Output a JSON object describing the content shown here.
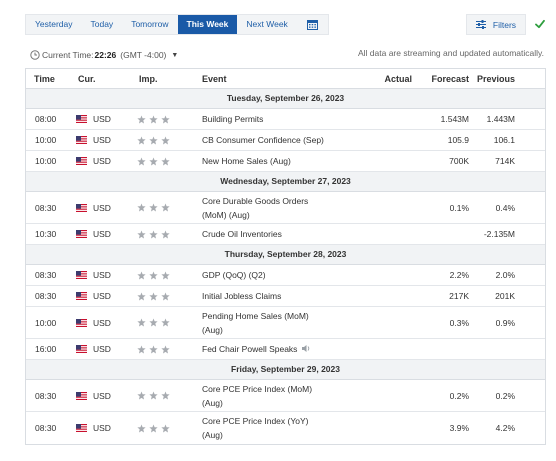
{
  "tabs": [
    {
      "label": "Yesterday",
      "active": false
    },
    {
      "label": "Today",
      "active": false
    },
    {
      "label": "Tomorrow",
      "active": false
    },
    {
      "label": "This Week",
      "active": true
    },
    {
      "label": "Next Week",
      "active": false
    }
  ],
  "filters_label": "Filters",
  "time_bar": {
    "prefix": "Current Time:",
    "time": "22:26",
    "zone": "(GMT -4:00)"
  },
  "streaming_note": "All data are streaming and updated automatically.",
  "columns": {
    "time": "Time",
    "currency": "Cur.",
    "importance": "Imp.",
    "event": "Event",
    "actual": "Actual",
    "forecast": "Forecast",
    "previous": "Previous"
  },
  "colors": {
    "accent": "#1a5aa7",
    "star": "#a7abb0",
    "check": "#2e9e3e"
  },
  "days": [
    {
      "date": "Tuesday, September 26, 2023",
      "events": [
        {
          "time": "08:00",
          "currency": "USD",
          "stars": 3,
          "event_lines": [
            "Building Permits"
          ],
          "actual": "",
          "forecast": "1.543M",
          "previous": "1.443M"
        },
        {
          "time": "10:00",
          "currency": "USD",
          "stars": 3,
          "event_lines": [
            "CB Consumer Confidence (Sep)"
          ],
          "actual": "",
          "forecast": "105.9",
          "previous": "106.1"
        },
        {
          "time": "10:00",
          "currency": "USD",
          "stars": 3,
          "event_lines": [
            "New Home Sales (Aug)"
          ],
          "actual": "",
          "forecast": "700K",
          "previous": "714K"
        }
      ]
    },
    {
      "date": "Wednesday, September 27, 2023",
      "events": [
        {
          "time": "08:30",
          "currency": "USD",
          "stars": 3,
          "event_lines": [
            "Core Durable Goods Orders",
            "(MoM) (Aug)"
          ],
          "actual": "",
          "forecast": "0.1%",
          "previous": "0.4%"
        },
        {
          "time": "10:30",
          "currency": "USD",
          "stars": 3,
          "event_lines": [
            "Crude Oil Inventories"
          ],
          "actual": "",
          "forecast": "",
          "previous": "-2.135M"
        }
      ]
    },
    {
      "date": "Thursday, September 28, 2023",
      "events": [
        {
          "time": "08:30",
          "currency": "USD",
          "stars": 3,
          "event_lines": [
            "GDP (QoQ) (Q2)"
          ],
          "actual": "",
          "forecast": "2.2%",
          "previous": "2.0%"
        },
        {
          "time": "08:30",
          "currency": "USD",
          "stars": 3,
          "event_lines": [
            "Initial Jobless Claims"
          ],
          "actual": "",
          "forecast": "217K",
          "previous": "201K"
        },
        {
          "time": "10:00",
          "currency": "USD",
          "stars": 3,
          "event_lines": [
            "Pending Home Sales (MoM)",
            "(Aug)"
          ],
          "actual": "",
          "forecast": "0.3%",
          "previous": "0.9%"
        },
        {
          "time": "16:00",
          "currency": "USD",
          "stars": 3,
          "event_lines": [
            "Fed Chair Powell Speaks"
          ],
          "speech": true,
          "actual": "",
          "forecast": "",
          "previous": ""
        }
      ]
    },
    {
      "date": "Friday, September 29, 2023",
      "events": [
        {
          "time": "08:30",
          "currency": "USD",
          "stars": 3,
          "event_lines": [
            "Core PCE Price Index (MoM)",
            "(Aug)"
          ],
          "actual": "",
          "forecast": "0.2%",
          "previous": "0.2%"
        },
        {
          "time": "08:30",
          "currency": "USD",
          "stars": 3,
          "event_lines": [
            "Core PCE Price Index (YoY)",
            "(Aug)"
          ],
          "actual": "",
          "forecast": "3.9%",
          "previous": "4.2%"
        }
      ]
    }
  ]
}
